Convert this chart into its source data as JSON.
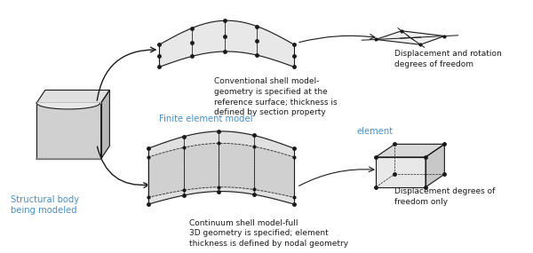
{
  "bg_color": "#ffffff",
  "blue_color": "#4a90c4",
  "black_color": "#1a1a1a",
  "texts": {
    "structural_body": "Structural body\nbeing modeled",
    "finite_element": "Finite element model",
    "element_top": "element",
    "conventional_desc": "Conventional shell model-\ngeometry is specified at the\nreference surface; thickness is\ndefined by section property",
    "displacement_rotation": "Displacement and rotation\ndegrees of freedom",
    "continuum_desc": "Continuum shell model-full\n3D geometry is specified; element\nthickness is defined by nodal geometry",
    "displacement_only": "Displacement degrees of\nfreedom only"
  },
  "figsize": [
    6.0,
    2.85
  ],
  "dpi": 100
}
